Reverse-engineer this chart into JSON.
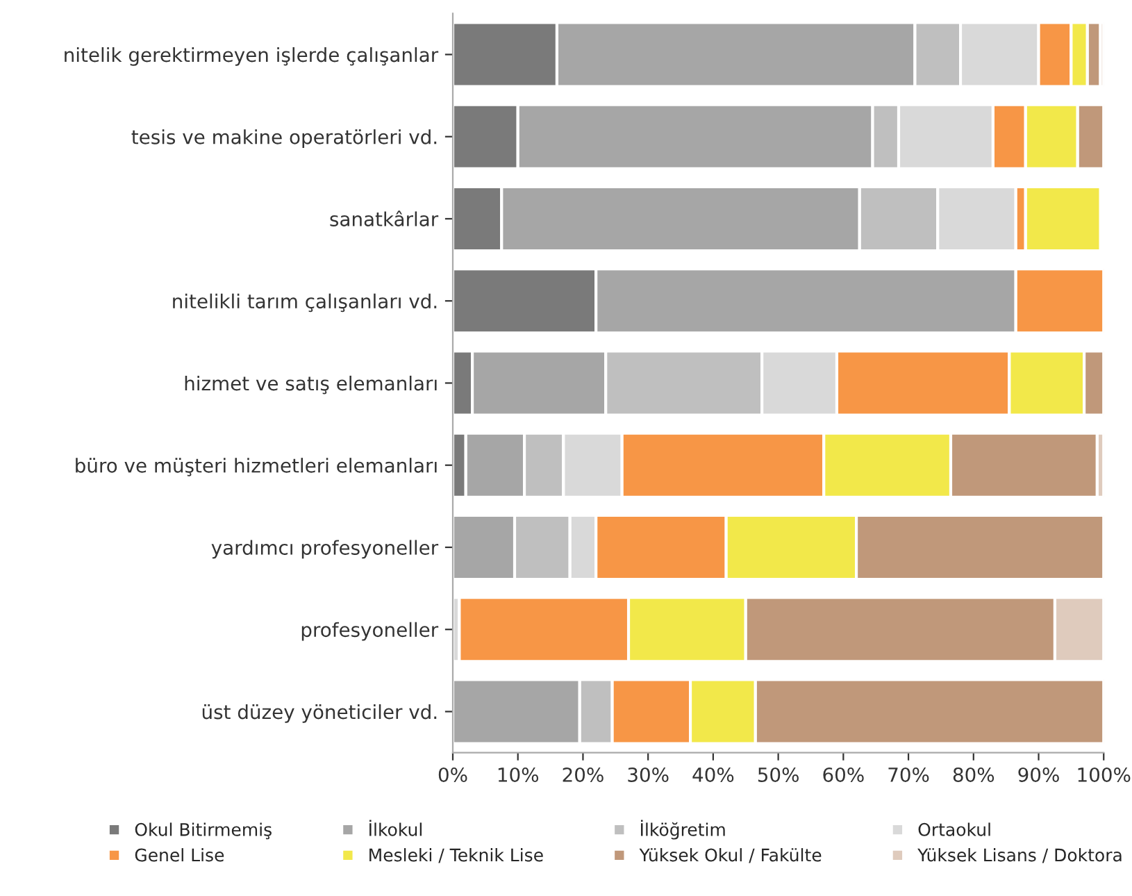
{
  "chart_data": {
    "type": "bar",
    "orientation": "horizontal",
    "stacked": true,
    "categories": [
      "nitelik gerektirmeyen işlerde çalışanlar",
      "tesis ve makine operatörleri vd.",
      "sanatkârlar",
      "nitelikli tarım çalışanları vd.",
      "hizmet ve satış elemanları",
      "büro ve müşteri hizmetleri elemanları",
      "yardımcı profesyoneller",
      "profesyoneller",
      "üst düzey yöneticiler vd."
    ],
    "series": [
      {
        "name": "Okul Bitirmemiş",
        "color": "#7a7a7a",
        "values": [
          16,
          10,
          7.5,
          22,
          3,
          2,
          0,
          0,
          0
        ]
      },
      {
        "name": "İlkokul",
        "color": "#a6a6a6",
        "values": [
          55,
          54.5,
          55,
          64.5,
          20.5,
          9,
          9.5,
          0,
          19.5
        ]
      },
      {
        "name": "İlköğretim",
        "color": "#bfbfbf",
        "values": [
          7,
          4,
          12,
          0,
          24,
          6,
          8.5,
          0,
          5
        ]
      },
      {
        "name": "Ortaokul",
        "color": "#d9d9d9",
        "values": [
          12,
          14.5,
          12,
          0,
          11.5,
          9,
          4,
          1,
          0
        ]
      },
      {
        "name": "Genel Lise",
        "color": "#f79646",
        "values": [
          5,
          5,
          1.5,
          13.5,
          26.5,
          31,
          20,
          26,
          12
        ]
      },
      {
        "name": "Mesleki / Teknik Lise",
        "color": "#f2e84a",
        "values": [
          2.5,
          8,
          11.5,
          0,
          11.5,
          19.5,
          20,
          18,
          10
        ]
      },
      {
        "name": "Yüksek Okul / Fakülte",
        "color": "#c0987a",
        "values": [
          2,
          4,
          null,
          0,
          3,
          22.5,
          38,
          47.5,
          53.5
        ]
      },
      {
        "name": "Yüksek Lisans / Doktora",
        "color": "#dfcbbd",
        "values": [
          0.5,
          0,
          0,
          0,
          0,
          1,
          0,
          7.5,
          0
        ]
      }
    ],
    "xlim": [
      0,
      100
    ],
    "xticks": [
      {
        "value": 0,
        "label": "0%"
      },
      {
        "value": 10,
        "label": "10%"
      },
      {
        "value": 20,
        "label": "20%"
      },
      {
        "value": 30,
        "label": "30%"
      },
      {
        "value": 40,
        "label": "40%"
      },
      {
        "value": 50,
        "label": "50%"
      },
      {
        "value": 60,
        "label": "60%"
      },
      {
        "value": 70,
        "label": "70%"
      },
      {
        "value": 80,
        "label": "80%"
      },
      {
        "value": 90,
        "label": "90%"
      },
      {
        "value": 100,
        "label": "100%"
      }
    ],
    "grid": false,
    "legend": "bottom"
  }
}
